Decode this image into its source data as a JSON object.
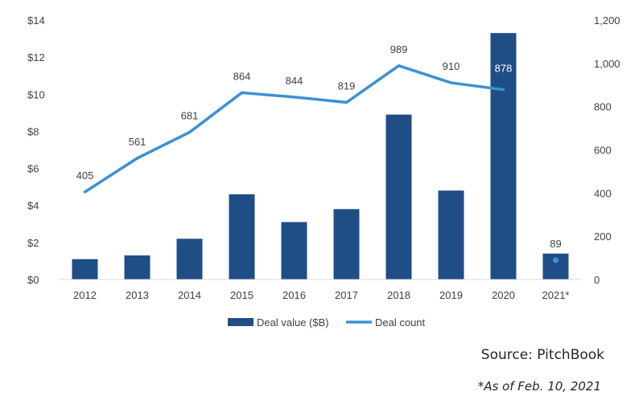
{
  "chart_data": {
    "type": "bar",
    "categories": [
      "2012",
      "2013",
      "2014",
      "2015",
      "2016",
      "2017",
      "2018",
      "2019",
      "2020",
      "2021*"
    ],
    "series": [
      {
        "name": "Deal value ($B)",
        "type": "bar",
        "axis": "left",
        "color": "#1f4e87",
        "values": [
          1.1,
          1.3,
          2.2,
          4.6,
          3.1,
          3.8,
          8.9,
          4.8,
          13.3,
          1.4
        ]
      },
      {
        "name": "Deal count",
        "type": "line",
        "axis": "right",
        "color": "#3b91d4",
        "values": [
          405,
          561,
          681,
          864,
          844,
          819,
          989,
          910,
          878,
          89
        ],
        "connected": [
          true,
          true,
          true,
          true,
          true,
          true,
          true,
          true,
          true,
          false
        ],
        "labels": [
          "405",
          "561",
          "681",
          "864",
          "844",
          "819",
          "989",
          "910",
          "878",
          "89"
        ]
      }
    ],
    "y_left": {
      "min": 0,
      "max": 14,
      "ticks": [
        0,
        2,
        4,
        6,
        8,
        10,
        12,
        14
      ],
      "tick_labels": [
        "$0",
        "$2",
        "$4",
        "$6",
        "$8",
        "$10",
        "$12",
        "$14"
      ]
    },
    "y_right": {
      "min": 0,
      "max": 1200,
      "ticks": [
        0,
        200,
        400,
        600,
        800,
        1000,
        1200
      ],
      "tick_labels": [
        "0",
        "200",
        "400",
        "600",
        "800",
        "1,000",
        "1,200"
      ]
    },
    "grid": false,
    "legend_position": "bottom"
  },
  "source_text": "Source: PitchBook",
  "footnote_text": "*As of Feb. 10, 2021"
}
